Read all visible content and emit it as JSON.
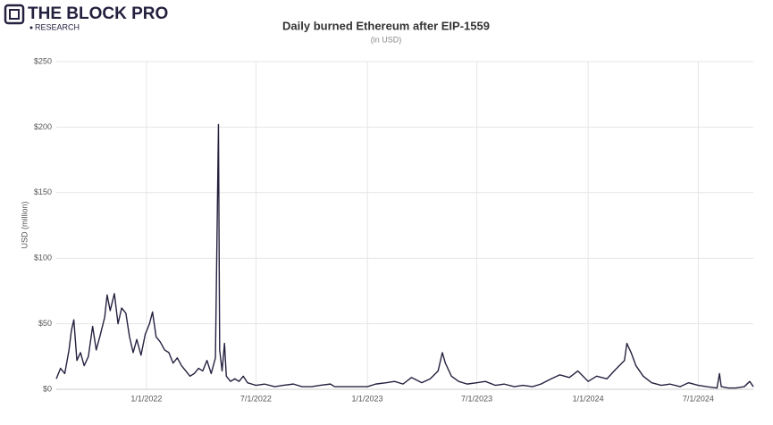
{
  "chart_data": {
    "type": "line",
    "brand": "THE BLOCK PRO",
    "brand_sub": "RESEARCH",
    "title": "Daily burned Ethereum after EIP-1559",
    "subtitle": "(in USD)",
    "y_label": "USD (million)",
    "color": "#24213f",
    "grid": true,
    "xlim": [
      "2021-08-05",
      "2024-09-30"
    ],
    "xticks": [
      {
        "value": "2022-01-01",
        "label": "1/1/2022"
      },
      {
        "value": "2022-07-01",
        "label": "7/1/2022"
      },
      {
        "value": "2023-01-01",
        "label": "1/1/2023"
      },
      {
        "value": "2023-07-01",
        "label": "7/1/2023"
      },
      {
        "value": "2024-01-01",
        "label": "1/1/2024"
      },
      {
        "value": "2024-07-01",
        "label": "7/1/2024"
      }
    ],
    "ylim": [
      0,
      250
    ],
    "yticks": [
      {
        "value": 0,
        "label": "$0"
      },
      {
        "value": 50,
        "label": "$50"
      },
      {
        "value": 100,
        "label": "$100"
      },
      {
        "value": 150,
        "label": "$150"
      },
      {
        "value": 200,
        "label": "$200"
      },
      {
        "value": 250,
        "label": "$250"
      }
    ],
    "x": [
      "2021-08-05",
      "2021-08-12",
      "2021-08-19",
      "2021-08-26",
      "2021-08-30",
      "2021-09-03",
      "2021-09-08",
      "2021-09-14",
      "2021-09-20",
      "2021-09-27",
      "2021-10-04",
      "2021-10-10",
      "2021-10-17",
      "2021-10-24",
      "2021-10-28",
      "2021-11-02",
      "2021-11-09",
      "2021-11-15",
      "2021-11-21",
      "2021-11-28",
      "2021-12-04",
      "2021-12-10",
      "2021-12-16",
      "2021-12-23",
      "2021-12-30",
      "2022-01-06",
      "2022-01-11",
      "2022-01-17",
      "2022-01-24",
      "2022-01-31",
      "2022-02-07",
      "2022-02-14",
      "2022-02-21",
      "2022-02-28",
      "2022-03-07",
      "2022-03-14",
      "2022-03-21",
      "2022-03-28",
      "2022-04-04",
      "2022-04-11",
      "2022-04-18",
      "2022-04-25",
      "2022-04-30",
      "2022-05-02",
      "2022-05-06",
      "2022-05-10",
      "2022-05-13",
      "2022-05-20",
      "2022-05-27",
      "2022-06-03",
      "2022-06-10",
      "2022-06-17",
      "2022-06-24",
      "2022-07-01",
      "2022-07-15",
      "2022-08-01",
      "2022-08-15",
      "2022-09-01",
      "2022-09-15",
      "2022-10-01",
      "2022-10-15",
      "2022-11-01",
      "2022-11-08",
      "2022-12-01",
      "2022-12-15",
      "2023-01-01",
      "2023-01-15",
      "2023-02-01",
      "2023-02-15",
      "2023-03-01",
      "2023-03-15",
      "2023-04-01",
      "2023-04-15",
      "2023-04-28",
      "2023-05-05",
      "2023-05-10",
      "2023-05-20",
      "2023-06-01",
      "2023-06-15",
      "2023-07-01",
      "2023-07-15",
      "2023-08-01",
      "2023-08-15",
      "2023-09-01",
      "2023-09-15",
      "2023-10-01",
      "2023-10-15",
      "2023-11-01",
      "2023-11-15",
      "2023-12-01",
      "2023-12-15",
      "2024-01-01",
      "2024-01-15",
      "2024-02-01",
      "2024-02-15",
      "2024-03-01",
      "2024-03-05",
      "2024-03-12",
      "2024-03-20",
      "2024-04-01",
      "2024-04-15",
      "2024-05-01",
      "2024-05-15",
      "2024-06-01",
      "2024-06-15",
      "2024-07-01",
      "2024-07-15",
      "2024-08-01",
      "2024-08-05",
      "2024-08-08",
      "2024-08-20",
      "2024-09-01",
      "2024-09-15",
      "2024-09-24",
      "2024-09-30"
    ],
    "values": [
      8,
      16,
      12,
      30,
      45,
      53,
      22,
      28,
      18,
      25,
      48,
      30,
      42,
      55,
      72,
      60,
      73,
      50,
      62,
      58,
      40,
      28,
      38,
      26,
      42,
      50,
      59,
      40,
      36,
      30,
      28,
      20,
      24,
      18,
      14,
      10,
      12,
      16,
      14,
      22,
      12,
      24,
      202,
      30,
      14,
      35,
      10,
      6,
      8,
      6,
      10,
      5,
      4,
      3,
      4,
      2,
      3,
      4,
      2,
      2,
      3,
      4,
      2,
      2,
      2,
      2,
      4,
      5,
      6,
      4,
      9,
      5,
      8,
      14,
      28,
      20,
      10,
      6,
      4,
      5,
      6,
      3,
      4,
      2,
      3,
      2,
      4,
      8,
      11,
      9,
      14,
      6,
      10,
      8,
      15,
      22,
      35,
      28,
      18,
      10,
      5,
      3,
      4,
      2,
      5,
      3,
      2,
      1,
      12,
      2,
      1,
      1,
      2,
      6,
      2
    ]
  }
}
